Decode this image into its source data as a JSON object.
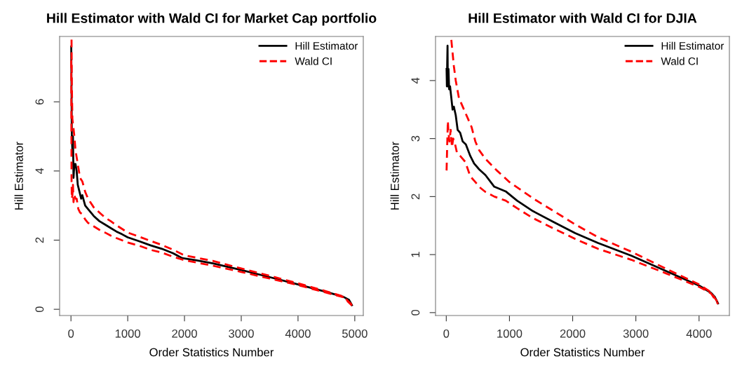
{
  "chart_data": [
    {
      "type": "line",
      "title": "Hill Estimator with Wald CI for Market Cap portfolio",
      "xlabel": "Order Statistics Number",
      "ylabel": "Hill Estimator",
      "xlim": [
        -200,
        5150
      ],
      "xticks": [
        0,
        1000,
        2000,
        3000,
        4000,
        5000
      ],
      "ylim": [
        -0.18,
        7.89
      ],
      "yticks": [
        0,
        2,
        4,
        6
      ],
      "legend": "top right",
      "grid": false,
      "series": [
        {
          "name": "Hill Estimator",
          "color": "#000000",
          "line_style": "solid",
          "x": [
            5,
            15,
            25,
            35,
            45,
            60,
            80,
            100,
            120,
            150,
            180,
            200,
            250,
            300,
            400,
            500,
            600,
            700,
            800,
            900,
            1000,
            1200,
            1400,
            1600,
            1800,
            1960,
            2200,
            2500,
            2990,
            3500,
            3975,
            4500,
            4800,
            4900,
            4950
          ],
          "values": [
            7.6,
            5.0,
            4.6,
            5.0,
            3.8,
            4.2,
            4.2,
            4.0,
            3.6,
            3.4,
            3.2,
            3.3,
            3.0,
            2.9,
            2.7,
            2.55,
            2.45,
            2.35,
            2.25,
            2.17,
            2.08,
            1.97,
            1.85,
            1.75,
            1.62,
            1.48,
            1.42,
            1.33,
            1.14,
            0.93,
            0.73,
            0.5,
            0.36,
            0.27,
            0.12
          ]
        },
        {
          "name": "Wald CI",
          "color": "#ff0000",
          "line_style": "dashed",
          "x": [
            10,
            15,
            25,
            40,
            60,
            80,
            100,
            130,
            160,
            200,
            250,
            300,
            400,
            500,
            600,
            700,
            800,
            1000,
            1200,
            1400,
            1600,
            1800,
            2000,
            2500,
            3000,
            3500,
            4000,
            4500,
            4800,
            4950
          ],
          "values": [
            7.8,
            6.5,
            5.5,
            5.3,
            5.0,
            4.6,
            4.4,
            4.1,
            3.8,
            3.7,
            3.4,
            3.2,
            2.95,
            2.8,
            2.65,
            2.55,
            2.43,
            2.22,
            2.1,
            1.98,
            1.86,
            1.72,
            1.56,
            1.4,
            1.18,
            0.97,
            0.75,
            0.52,
            0.37,
            0.13
          ]
        },
        {
          "color": "#ff0000",
          "line_style": "dashed",
          "x": [
            5,
            10,
            15,
            25,
            35,
            45,
            60,
            80,
            100,
            130,
            160,
            200,
            250,
            300,
            400,
            500,
            600,
            700,
            800,
            1000,
            1200,
            1400,
            1600,
            1800,
            2000,
            2500,
            3000,
            3500,
            4000,
            4500,
            4800,
            4950
          ],
          "values": [
            7.2,
            3.8,
            3.2,
            3.3,
            3.6,
            3.1,
            3.3,
            3.2,
            3.2,
            2.9,
            2.8,
            2.75,
            2.6,
            2.5,
            2.4,
            2.3,
            2.22,
            2.13,
            2.06,
            1.93,
            1.84,
            1.72,
            1.64,
            1.52,
            1.42,
            1.26,
            1.08,
            0.89,
            0.7,
            0.48,
            0.35,
            0.11
          ]
        }
      ]
    },
    {
      "type": "line",
      "title": "Hill Estimator with Wald CI for DJIA",
      "xlabel": "Order Statistics Number",
      "ylabel": "Hill Estimator",
      "xlim": [
        -170,
        4480
      ],
      "xticks": [
        0,
        1000,
        2000,
        3000,
        4000
      ],
      "ylim": [
        -0.05,
        4.76
      ],
      "yticks": [
        0,
        1,
        2,
        3,
        4
      ],
      "legend": "top right",
      "grid": false,
      "series": [
        {
          "name": "Hill Estimator",
          "color": "#000000",
          "line_style": "solid",
          "x": [
            5,
            10,
            15,
            20,
            25,
            35,
            45,
            60,
            80,
            100,
            120,
            150,
            180,
            220,
            260,
            310,
            380,
            440,
            520,
            620,
            760,
            940,
            1120,
            1370,
            1700,
            2040,
            2400,
            2930,
            3470,
            4010,
            4190,
            4250,
            4300
          ],
          "values": [
            4.2,
            3.9,
            4.3,
            4.6,
            3.9,
            4.2,
            3.85,
            3.9,
            3.7,
            3.5,
            3.55,
            3.4,
            3.15,
            3.1,
            2.95,
            2.9,
            2.7,
            2.57,
            2.47,
            2.37,
            2.17,
            2.09,
            1.93,
            1.75,
            1.56,
            1.37,
            1.2,
            0.98,
            0.72,
            0.46,
            0.34,
            0.27,
            0.16
          ]
        },
        {
          "name": "Wald CI",
          "color": "#ff0000",
          "line_style": "dashed",
          "x": [
            80,
            120,
            150,
            200,
            260,
            320,
            400,
            460,
            520,
            620,
            800,
            1000,
            1200,
            1400,
            1700,
            2040,
            2400,
            2930,
            3470,
            4010,
            4190,
            4300
          ],
          "values": [
            4.7,
            4.25,
            4.0,
            3.7,
            3.55,
            3.4,
            3.2,
            2.95,
            2.8,
            2.65,
            2.45,
            2.25,
            2.1,
            1.95,
            1.75,
            1.52,
            1.3,
            1.05,
            0.76,
            0.48,
            0.35,
            0.17
          ]
        },
        {
          "color": "#ff0000",
          "line_style": "dashed",
          "x": [
            5,
            15,
            25,
            35,
            50,
            70,
            90,
            110,
            140,
            170,
            220,
            300,
            380,
            460,
            540,
            620,
            760,
            940,
            1120,
            1370,
            1700,
            2040,
            2400,
            2930,
            3470,
            4010,
            4190,
            4300
          ],
          "values": [
            2.45,
            2.9,
            3.3,
            3.1,
            2.95,
            3.15,
            2.85,
            3.0,
            2.9,
            2.75,
            2.7,
            2.6,
            2.35,
            2.25,
            2.15,
            2.08,
            2.0,
            1.93,
            1.8,
            1.63,
            1.45,
            1.27,
            1.1,
            0.91,
            0.68,
            0.44,
            0.33,
            0.15
          ]
        }
      ]
    }
  ]
}
